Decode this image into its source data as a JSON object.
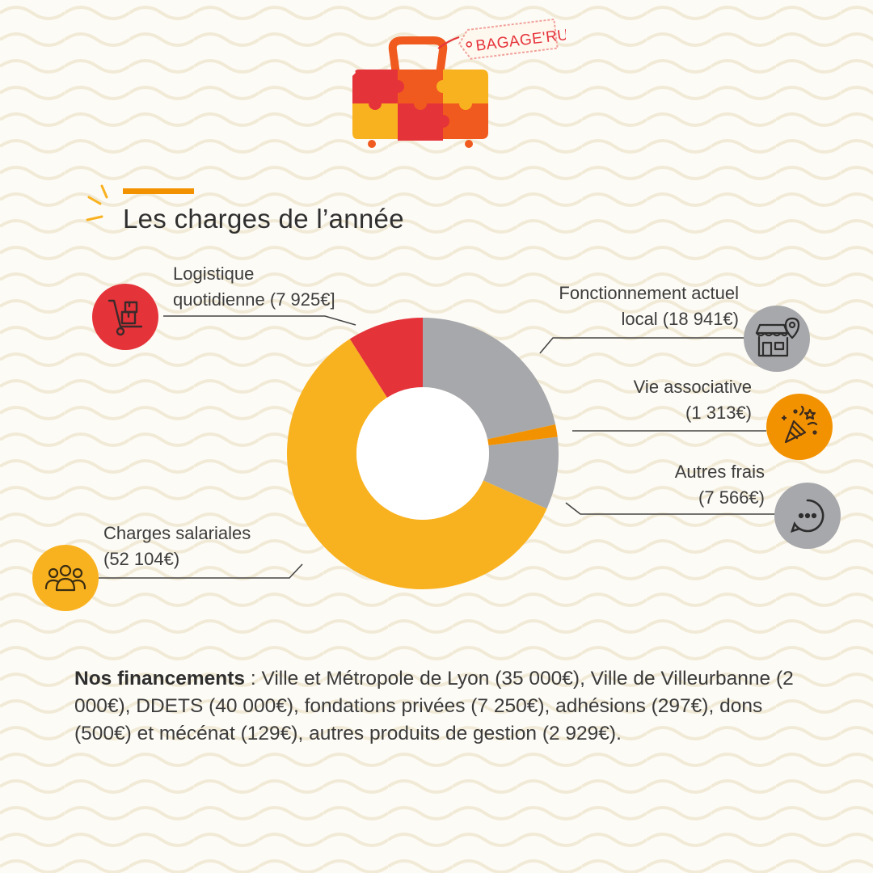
{
  "brand": {
    "tag_text": "BAGAGE'RUE"
  },
  "title": "Les charges de l’année",
  "chart_data": {
    "type": "pie",
    "donut": true,
    "segments": [
      {
        "label_line1": "Fonctionnement actuel",
        "label_line2": "local (18 941€)",
        "value": 18941,
        "color": "#a7a8ab",
        "icon": "shop-location-icon"
      },
      {
        "label_line1": "Vie associative",
        "label_line2": "(1 313€)",
        "value": 1313,
        "color": "#f39200",
        "icon": "party-popper-icon"
      },
      {
        "label_line1": "Autres frais",
        "label_line2": "(7 566€)",
        "value": 7566,
        "color": "#a7a8ab",
        "icon": "more-dots-icon"
      },
      {
        "label_line1": "Charges salariales",
        "label_line2": "(52 104€)",
        "value": 52104,
        "color": "#f9b21f",
        "icon": "group-people-icon"
      },
      {
        "label_line1": "Logistique",
        "label_line2": "quotidienne (7 925€]",
        "value": 7925,
        "color": "#e5333a",
        "icon": "hand-truck-icon"
      }
    ]
  },
  "funding": {
    "heading": "Nos financements",
    "text": " : Ville et Métropole de Lyon (35 000€), Ville de Villeurbanne (2 000€), DDETS (40 000€), fondations privées (7 250€), adhésions (297€), dons (500€) et mécénat (129€), autres produits de gestion (2 929€)."
  },
  "colors": {
    "accent": "#f39200",
    "red": "#e5333a",
    "yellow": "#f9b21f",
    "grey": "#a7a8ab",
    "wave": "#f1ead6"
  }
}
